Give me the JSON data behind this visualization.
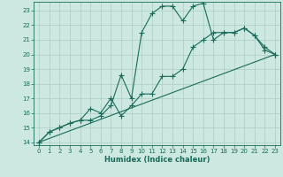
{
  "xlabel": "Humidex (Indice chaleur)",
  "xlim": [
    -0.5,
    23.5
  ],
  "ylim": [
    13.8,
    23.6
  ],
  "xticks": [
    0,
    1,
    2,
    3,
    4,
    5,
    6,
    7,
    8,
    9,
    10,
    11,
    12,
    13,
    14,
    15,
    16,
    17,
    18,
    19,
    20,
    21,
    22,
    23
  ],
  "yticks": [
    14,
    15,
    16,
    17,
    18,
    19,
    20,
    21,
    22,
    23
  ],
  "bg_color": "#cce8e0",
  "line_color": "#1a6b5a",
  "grid_color": "#aaccc4",
  "line1_x": [
    0,
    1,
    2,
    3,
    4,
    5,
    6,
    7,
    8,
    9,
    10,
    11,
    12,
    13,
    14,
    15,
    16,
    17,
    18,
    19,
    20,
    21,
    22,
    23
  ],
  "line1_y": [
    14.0,
    14.7,
    15.0,
    15.3,
    15.5,
    15.5,
    15.8,
    16.5,
    18.6,
    17.0,
    21.5,
    22.8,
    23.3,
    23.3,
    22.3,
    23.3,
    23.5,
    21.0,
    21.5,
    21.5,
    21.8,
    21.3,
    20.3,
    20.0
  ],
  "line2_x": [
    0,
    1,
    2,
    3,
    4,
    5,
    6,
    7,
    8,
    9,
    10,
    11,
    12,
    13,
    14,
    15,
    16,
    17,
    18,
    19,
    20,
    21,
    22,
    23
  ],
  "line2_y": [
    14.0,
    14.7,
    15.0,
    15.3,
    15.5,
    16.3,
    16.0,
    17.0,
    15.8,
    16.5,
    17.3,
    17.3,
    18.5,
    18.5,
    19.0,
    20.5,
    21.0,
    21.5,
    21.5,
    21.5,
    21.8,
    21.3,
    20.5,
    20.0
  ],
  "line3_x": [
    0,
    23
  ],
  "line3_y": [
    14.0,
    20.0
  ]
}
